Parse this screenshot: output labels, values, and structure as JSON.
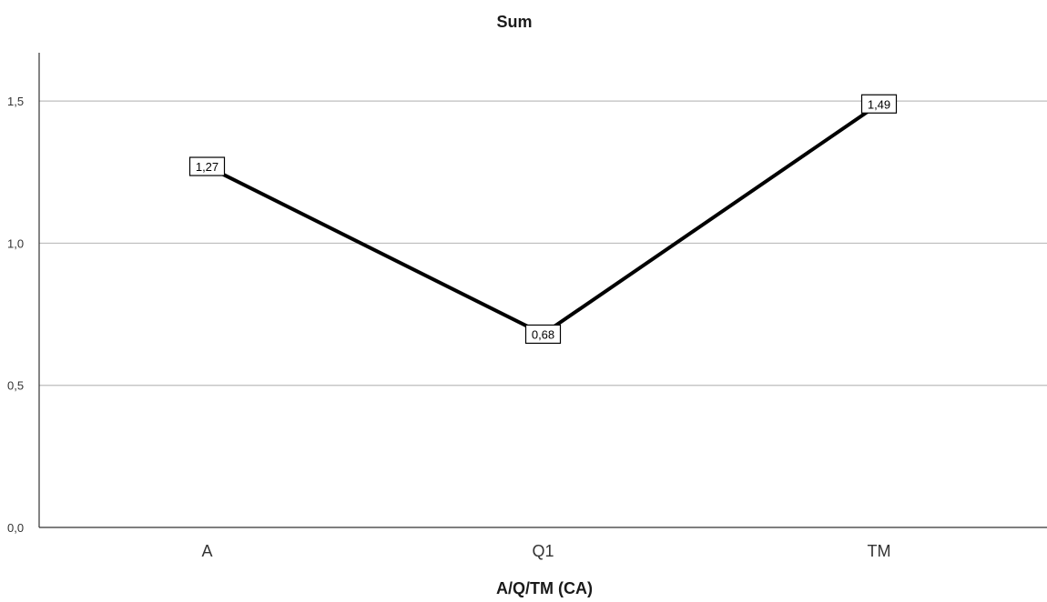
{
  "chart_data": {
    "type": "line",
    "title": "Sum",
    "xlabel": "A/Q/TM (CA)",
    "ylabel": "",
    "categories": [
      "A",
      "Q1",
      "TM"
    ],
    "series": [
      {
        "values": [
          1.27,
          0.68,
          1.49
        ],
        "data_labels": [
          "1,27",
          "0,68",
          "1,49"
        ],
        "color": "#000000"
      }
    ],
    "ylim": [
      0,
      1.67
    ],
    "yticks": [
      0,
      0.5,
      1.0,
      1.5
    ],
    "ytick_labels": [
      "0,0",
      "0,5",
      "1,0",
      "1,5"
    ],
    "grid": true,
    "legend": "none"
  }
}
